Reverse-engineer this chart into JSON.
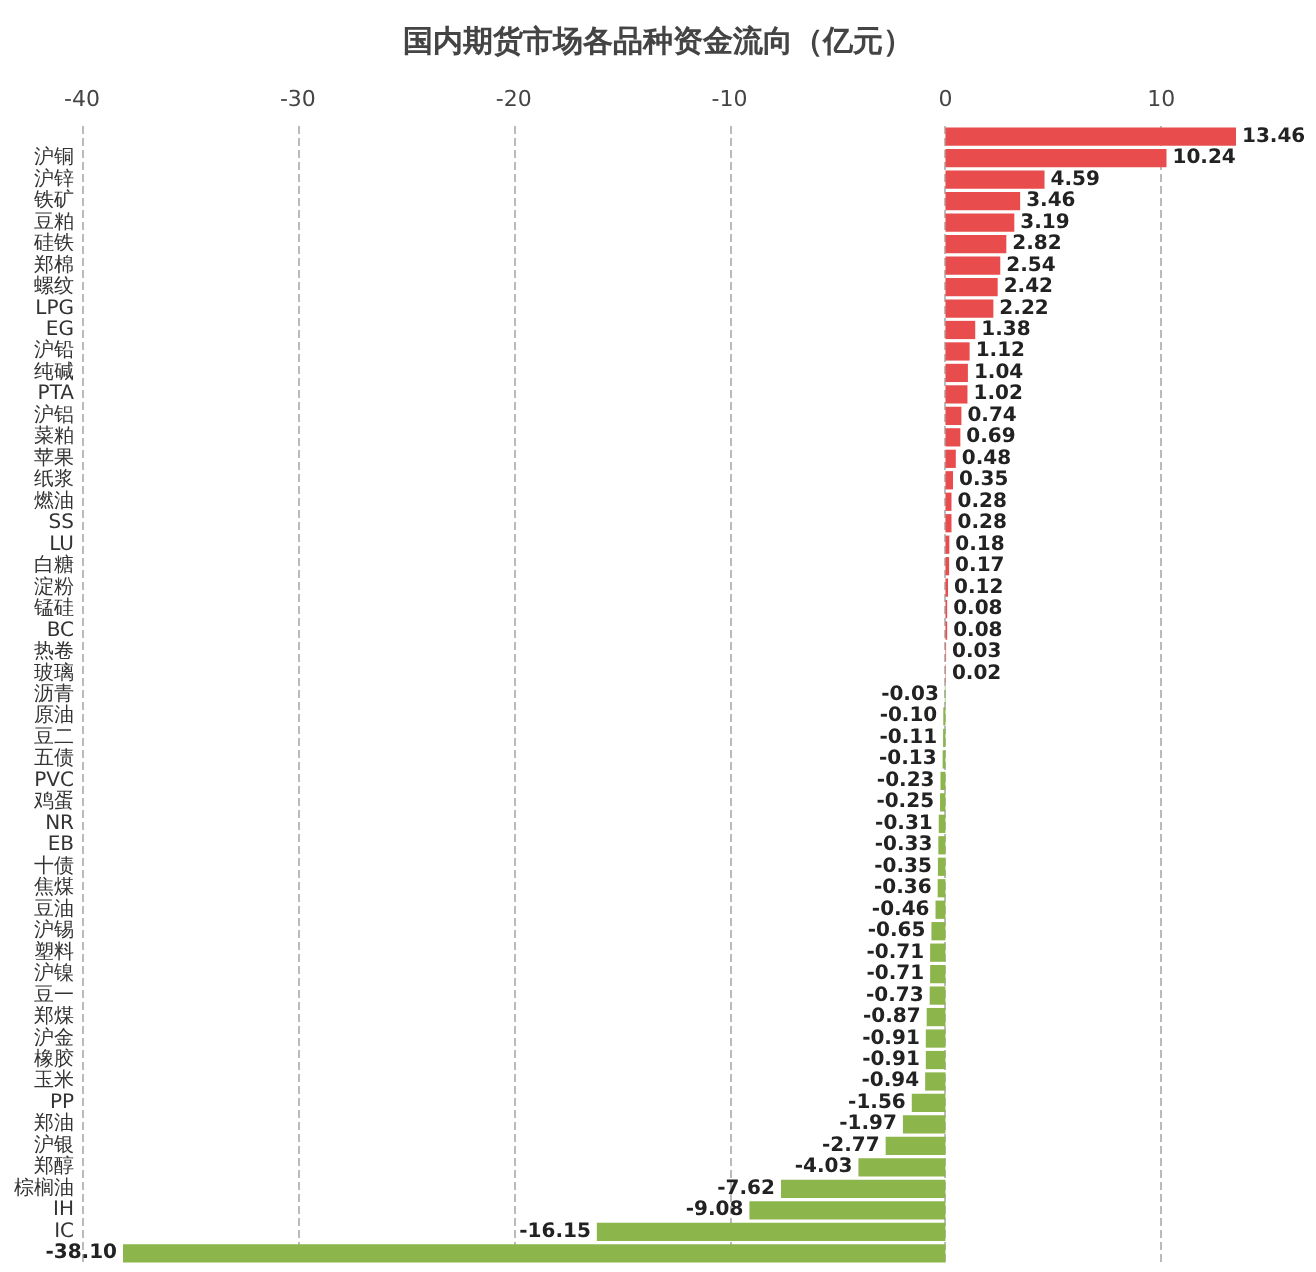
{
  "chart_data": {
    "type": "bar",
    "orientation": "horizontal",
    "title": "国内期货市场各品种资金流向（亿元）",
    "categories": [
      null,
      "沪铜",
      "沪锌",
      "铁矿",
      "豆粕",
      "硅铁",
      "郑棉",
      "螺纹",
      "LPG",
      "EG",
      "沪铅",
      "纯碱",
      "PTA",
      "沪铝",
      "菜粕",
      "苹果",
      "纸浆",
      "燃油",
      "SS",
      "LU",
      "白糖",
      "淀粉",
      "锰硅",
      "BC",
      "热卷",
      "玻璃",
      "沥青",
      "原油",
      "豆二",
      "五债",
      "PVC",
      "鸡蛋",
      "NR",
      "EB",
      "十债",
      "焦煤",
      "豆油",
      "沪锡",
      "塑料",
      "沪镍",
      "豆一",
      "郑煤",
      "沪金",
      "橡胶",
      "玉米",
      "PP",
      "郑油",
      "沪银",
      "郑醇",
      "棕榈油",
      "IH",
      "IC",
      null
    ],
    "values": [
      13.46,
      10.24,
      4.59,
      3.46,
      3.19,
      2.82,
      2.54,
      2.42,
      2.22,
      1.38,
      1.12,
      1.04,
      1.02,
      0.74,
      0.69,
      0.48,
      0.35,
      0.28,
      0.28,
      0.18,
      0.17,
      0.12,
      0.08,
      0.08,
      0.03,
      0.02,
      -0.03,
      -0.1,
      -0.11,
      -0.13,
      -0.23,
      -0.25,
      -0.31,
      -0.33,
      -0.35,
      -0.36,
      -0.46,
      -0.65,
      -0.71,
      -0.71,
      -0.73,
      -0.87,
      -0.91,
      -0.91,
      -0.94,
      -1.56,
      -1.97,
      -2.77,
      -4.03,
      -7.62,
      -9.08,
      -16.15,
      -38.1
    ],
    "value_labels": [
      "13.46",
      "10.24",
      "4.59",
      "3.46",
      "3.19",
      "2.82",
      "2.54",
      "2.42",
      "2.22",
      "1.38",
      "1.12",
      "1.04",
      "1.02",
      "0.74",
      "0.69",
      "0.48",
      "0.35",
      "0.28",
      "0.28",
      "0.18",
      "0.17",
      "0.12",
      "0.08",
      "0.08",
      "0.03",
      "0.02",
      "-0.03",
      "-0.10",
      "-0.11",
      "-0.13",
      "-0.23",
      "-0.25",
      "-0.31",
      "-0.33",
      "-0.35",
      "-0.36",
      "-0.46",
      "-0.65",
      "-0.71",
      "-0.71",
      "-0.73",
      "-0.87",
      "-0.91",
      "-0.91",
      "-0.94",
      "-1.56",
      "-1.97",
      "-2.77",
      "-4.03",
      "-7.62",
      "-9.08",
      "-16.15",
      "-38.10"
    ],
    "colors": [
      "#e84c4c",
      "#e84c4c",
      "#e84c4c",
      "#e84c4c",
      "#e84c4c",
      "#e84c4c",
      "#e84c4c",
      "#e84c4c",
      "#e84c4c",
      "#e84c4c",
      "#e84c4c",
      "#e84c4c",
      "#e84c4c",
      "#e84c4c",
      "#e84c4c",
      "#e84c4c",
      "#e84c4c",
      "#e84c4c",
      "#e84c4c",
      "#e84c4c",
      "#e84c4c",
      "#e84c4c",
      "#e84c4c",
      "#e84c4c",
      "#e84c4c",
      "#e84c4c",
      "#8cb54b",
      "#8cb54b",
      "#8cb54b",
      "#8cb54b",
      "#8cb54b",
      "#8cb54b",
      "#8cb54b",
      "#8cb54b",
      "#8cb54b",
      "#8cb54b",
      "#8cb54b",
      "#8cb54b",
      "#8cb54b",
      "#8cb54b",
      "#8cb54b",
      "#8cb54b",
      "#8cb54b",
      "#8cb54b",
      "#8cb54b",
      "#8cb54b",
      "#8cb54b",
      "#8cb54b",
      "#8cb54b",
      "#8cb54b",
      "#8cb54b",
      "#8cb54b",
      "#8cb54b"
    ],
    "xlim": [
      -40,
      13.46
    ],
    "xticks": [
      -40,
      -30,
      -20,
      -10,
      0,
      10
    ],
    "grid": "x"
  }
}
